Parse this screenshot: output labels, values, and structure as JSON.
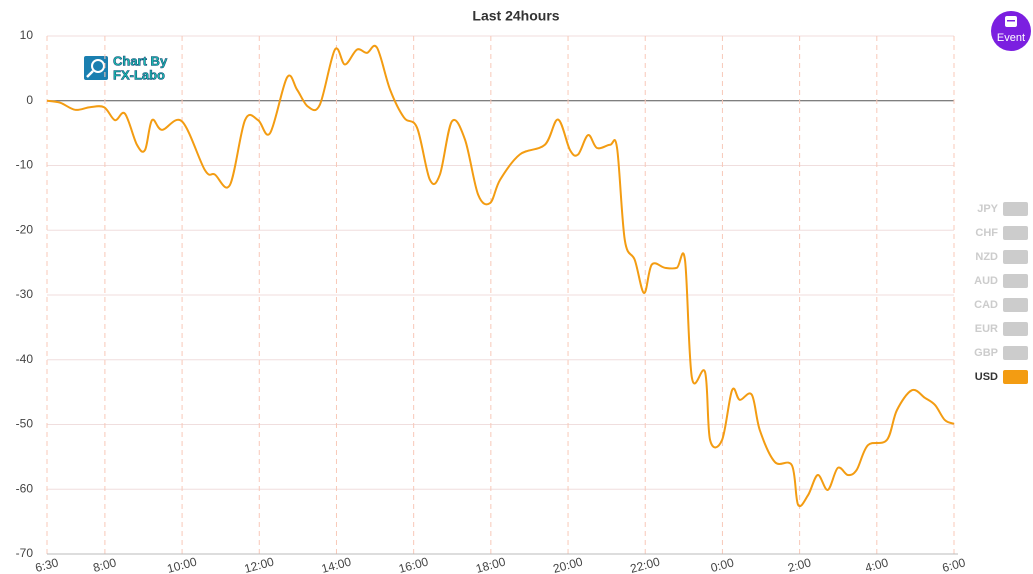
{
  "chart_data": {
    "type": "line",
    "title": "Last 24hours",
    "logo": [
      "Chart By",
      "FX-Labo"
    ],
    "button": "Event",
    "x": [
      0,
      0.34,
      0.73,
      1.11,
      1.48,
      1.76,
      2.02,
      2.33,
      2.54,
      2.72,
      2.98,
      3.5,
      4.09,
      4.35,
      4.74,
      5.13,
      5.47,
      5.78,
      6.22,
      6.48,
      6.76,
      7.07,
      7.46,
      7.72,
      8.03,
      8.29,
      8.55,
      8.89,
      9.25,
      9.59,
      9.92,
      10.18,
      10.49,
      10.83,
      11.17,
      11.48,
      11.74,
      12.25,
      12.9,
      13.24,
      13.55,
      13.76,
      14.02,
      14.25,
      14.59,
      14.77,
      14.97,
      15.23,
      15.47,
      15.67,
      16.01,
      16.32,
      16.53,
      16.71,
      17.05,
      17.18,
      17.49,
      17.75,
      17.95,
      18.26,
      18.47,
      18.86,
      19.3,
      19.46,
      19.72,
      19.97,
      20.23,
      20.49,
      20.75,
      20.98,
      21.27,
      21.76,
      22.02,
      22.41,
      22.75,
      23.01,
      23.26,
      23.5
    ],
    "series": [
      {
        "name": "USD",
        "color": "#f39c12",
        "values": [
          0,
          -0.3,
          -1.4,
          -1,
          -1,
          -3,
          -2,
          -6.8,
          -7.6,
          -3,
          -4.5,
          -3.2,
          -10.7,
          -11.4,
          -13,
          -3,
          -3,
          -5,
          3.6,
          1.7,
          -0.9,
          -0.6,
          7.9,
          5.6,
          7.9,
          7.4,
          8.2,
          1.7,
          -2.6,
          -4.2,
          -12.2,
          -11.4,
          -3.2,
          -6,
          -14.5,
          -15.8,
          -12.2,
          -8.3,
          -6.8,
          -2.9,
          -7.6,
          -8.3,
          -5.3,
          -7.3,
          -6.8,
          -7.3,
          -21.5,
          -24.6,
          -29.7,
          -25.3,
          -25.8,
          -25.8,
          -24.6,
          -42.8,
          -41.9,
          -52.4,
          -52.4,
          -44.7,
          -46.2,
          -45.4,
          -50.9,
          -55.8,
          -56.3,
          -62.4,
          -60.9,
          -57.8,
          -60.1,
          -56.7,
          -57.8,
          -57,
          -53.2,
          -52.4,
          -47.8,
          -44.7,
          -45.9,
          -47,
          -49.3,
          -49.9
        ]
      }
    ],
    "legend": [
      {
        "name": "JPY",
        "color": "#cccccc"
      },
      {
        "name": "CHF",
        "color": "#cccccc"
      },
      {
        "name": "NZD",
        "color": "#cccccc"
      },
      {
        "name": "AUD",
        "color": "#cccccc"
      },
      {
        "name": "CAD",
        "color": "#cccccc"
      },
      {
        "name": "EUR",
        "color": "#cccccc"
      },
      {
        "name": "GBP",
        "color": "#cccccc"
      }
    ],
    "xlim": [
      0,
      23.5
    ],
    "xticks": [
      {
        "value": 0,
        "label": "6:30"
      },
      {
        "value": 1.5,
        "label": "8:00"
      },
      {
        "value": 3.5,
        "label": "10:00"
      },
      {
        "value": 5.5,
        "label": "12:00"
      },
      {
        "value": 7.5,
        "label": "14:00"
      },
      {
        "value": 9.5,
        "label": "16:00"
      },
      {
        "value": 11.5,
        "label": "18:00"
      },
      {
        "value": 13.5,
        "label": "20:00"
      },
      {
        "value": 15.5,
        "label": "22:00"
      },
      {
        "value": 17.5,
        "label": "0:00"
      },
      {
        "value": 19.5,
        "label": "2:00"
      },
      {
        "value": 21.5,
        "label": "4:00"
      },
      {
        "value": 23.5,
        "label": "6:00"
      }
    ],
    "ylim": [
      -70,
      10
    ],
    "yticks": [
      10,
      0,
      -10,
      -20,
      -30,
      -40,
      -50,
      -60,
      -70
    ],
    "grid": true
  }
}
